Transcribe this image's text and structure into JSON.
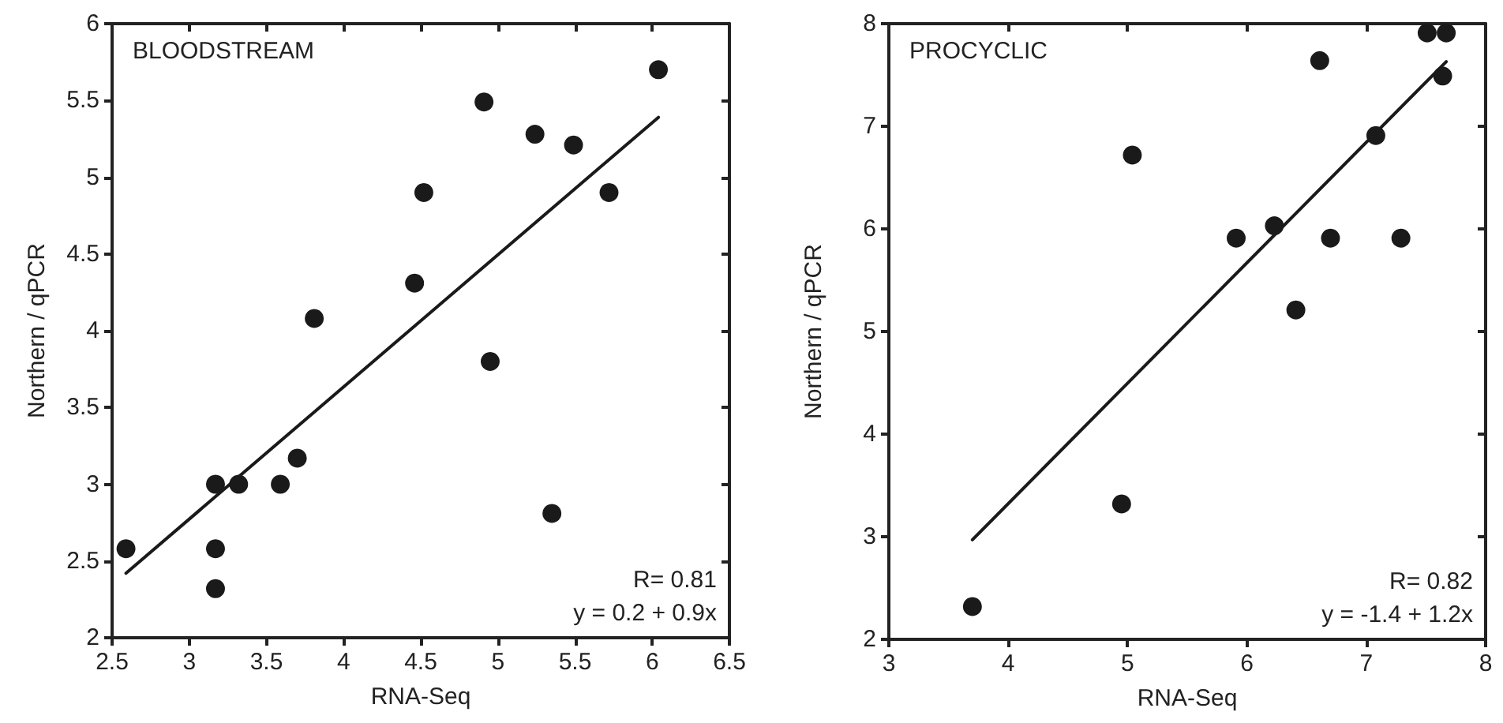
{
  "chart_data": [
    {
      "type": "scatter",
      "title": "BLOODSTREAM",
      "xlabel": "RNA-Seq",
      "ylabel": "Northern / qPCR",
      "xlim": [
        2.5,
        6.5
      ],
      "xticks": [
        2.5,
        3,
        3.5,
        4,
        4.5,
        5,
        5.5,
        6,
        6.5
      ],
      "ylim": [
        2,
        6
      ],
      "yticks": [
        2,
        2.5,
        3,
        3.5,
        4,
        4.5,
        5,
        5.5,
        6
      ],
      "marker": "circle",
      "annotations": [
        "R= 0.81",
        "y = 0.2 + 0.9x"
      ],
      "series": [
        {
          "color": "#1a1a1a",
          "x": [
            2.59,
            3.17,
            3.17,
            3.17,
            3.32,
            3.59,
            3.7,
            3.81,
            4.46,
            4.52,
            4.91,
            4.95,
            5.24,
            5.35,
            5.49,
            5.72,
            6.04
          ],
          "values": [
            2.58,
            3.0,
            2.58,
            2.32,
            3.0,
            3.0,
            3.17,
            4.08,
            4.31,
            4.9,
            5.49,
            3.8,
            5.28,
            2.81,
            5.21,
            4.9,
            5.7
          ]
        },
        {
          "type": "line",
          "color": "#1a1a1a",
          "line_style": "solid",
          "marker": "none",
          "x": [
            2.59,
            6.04
          ],
          "values": [
            2.42,
            5.39
          ]
        }
      ]
    },
    {
      "type": "scatter",
      "title": "PROCYCLIC",
      "xlabel": "RNA-Seq",
      "ylabel": "Northern / qPCR",
      "xlim": [
        3,
        8
      ],
      "xticks": [
        3,
        4,
        5,
        6,
        7,
        8
      ],
      "ylim": [
        2,
        8
      ],
      "yticks": [
        2,
        3,
        4,
        5,
        6,
        7,
        8
      ],
      "marker": "circle",
      "annotations": [
        "R= 0.82",
        "y = -1.4 + 1.2x"
      ],
      "series": [
        {
          "color": "#1a1a1a",
          "x": [
            3.7,
            4.95,
            5.04,
            5.91,
            6.23,
            6.41,
            6.61,
            6.7,
            7.08,
            7.29,
            7.51,
            7.67,
            7.64
          ],
          "values": [
            2.32,
            3.32,
            6.72,
            5.91,
            6.03,
            5.21,
            7.64,
            5.91,
            6.91,
            5.91,
            7.91,
            7.91,
            7.49
          ]
        },
        {
          "type": "line",
          "color": "#1a1a1a",
          "line_style": "solid",
          "marker": "none",
          "x": [
            3.7,
            7.67
          ],
          "values": [
            2.97,
            7.63
          ]
        }
      ]
    }
  ]
}
